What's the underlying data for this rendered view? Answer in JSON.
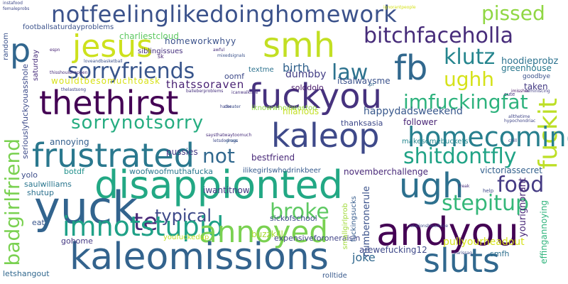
{
  "words": [
    {
      "text": "notfeelinglikedoinghomework",
      "color": "#3b528b"
    },
    {
      "text": "smh",
      "color": "#c2df23"
    },
    {
      "text": "jesus",
      "color": "#cde11d"
    },
    {
      "text": "bitchfaceholla",
      "color": "#472c7a"
    },
    {
      "text": "fb",
      "color": "#31688e"
    },
    {
      "text": "p",
      "color": "#31668e"
    },
    {
      "text": "sorryfriends",
      "color": "#39568c"
    },
    {
      "text": "law",
      "color": "#2c728e"
    },
    {
      "text": "klutz",
      "color": "#25858e"
    },
    {
      "text": "ughh",
      "color": "#d5e21a"
    },
    {
      "text": "pissed",
      "color": "#90d743"
    },
    {
      "text": "thethirst",
      "color": "#440154"
    },
    {
      "text": "fuckyou",
      "color": "#46327e"
    },
    {
      "text": "imfuckingfat",
      "color": "#2db27d"
    },
    {
      "text": "fuckit",
      "color": "#bddf26"
    },
    {
      "text": "badgirlfriend",
      "color": "#7ad151"
    },
    {
      "text": "sorrynotsorry",
      "color": "#26ad81"
    },
    {
      "text": "kaleop",
      "color": "#3e4989"
    },
    {
      "text": "homecoming",
      "color": "#277f8e"
    },
    {
      "text": "frustrated",
      "color": "#2a788e"
    },
    {
      "text": "shitdontfly",
      "color": "#20a386"
    },
    {
      "text": "not",
      "color": "#31688e"
    },
    {
      "text": "disappionted",
      "color": "#22a884"
    },
    {
      "text": "ugh",
      "color": "#2d708e"
    },
    {
      "text": "food",
      "color": "#443a83"
    },
    {
      "text": "yuck",
      "color": "#32648e"
    },
    {
      "text": "te",
      "color": "#482878"
    },
    {
      "text": "typical",
      "color": "#3e4a89"
    },
    {
      "text": "broke",
      "color": "#5ec962"
    },
    {
      "text": "stepitup",
      "color": "#35b779"
    },
    {
      "text": "imnotstupid",
      "color": "#1fa187"
    },
    {
      "text": "annoyed",
      "color": "#7ad151"
    },
    {
      "text": "andyou",
      "color": "#440154"
    },
    {
      "text": "kaleomissions",
      "color": "#33638d"
    },
    {
      "text": "sluts",
      "color": "#31688e"
    },
    {
      "text": "thatssoraven",
      "color": "#482173"
    },
    {
      "text": "birth",
      "color": "#33638d"
    },
    {
      "text": "dumbby",
      "color": "#433e85"
    },
    {
      "text": "homeworkwhyy",
      "color": "#3b528b"
    },
    {
      "text": "charliestcloud",
      "color": "#5ec962"
    },
    {
      "text": "siblingissues",
      "color": "#46307e"
    },
    {
      "text": "footballsaturdayproblems",
      "color": "#3b528b"
    },
    {
      "text": "hoodieprobz",
      "color": "#2c728e"
    },
    {
      "text": "greenhouse",
      "color": "#2a788e"
    },
    {
      "text": "taken",
      "color": "#443a83"
    },
    {
      "text": "wouldtbesomuchtoask",
      "color": "#d8e219"
    },
    {
      "text": "itsalwaysme",
      "color": "#3b528b"
    },
    {
      "text": "solodolo",
      "color": "#48186a"
    },
    {
      "text": "oomf",
      "color": "#3e4a89"
    },
    {
      "text": "textme",
      "color": "#2c728e"
    },
    {
      "text": "iknowwhoitwastoo",
      "color": "#8fd744"
    },
    {
      "text": "hilarious",
      "color": "#c2df23"
    },
    {
      "text": "happydadsweekend",
      "color": "#38588c"
    },
    {
      "text": "follower",
      "color": "#482475"
    },
    {
      "text": "thanksasia",
      "color": "#3e4989"
    },
    {
      "text": "makesomebuckets",
      "color": "#24868e"
    },
    {
      "text": "annoying",
      "color": "#35608d"
    },
    {
      "text": "pussies",
      "color": "#443983"
    },
    {
      "text": "bestfriend",
      "color": "#482878"
    },
    {
      "text": "woofwoofmuthafucka",
      "color": "#2a788e"
    },
    {
      "text": "ilikegirlswhodrinkbeer",
      "color": "#375b8d"
    },
    {
      "text": "novemberchallenge",
      "color": "#482878"
    },
    {
      "text": "victoriassecret",
      "color": "#34618d"
    },
    {
      "text": "botdf",
      "color": "#21918c"
    },
    {
      "text": "yolo",
      "color": "#3d4e8a"
    },
    {
      "text": "saulwilliams",
      "color": "#2a768e"
    },
    {
      "text": "shutup",
      "color": "#2c718e"
    },
    {
      "text": "seriouslyfuckyouasshole",
      "color": "#3e4c8a"
    },
    {
      "text": "saturday",
      "color": "#472d7b"
    },
    {
      "text": "iwantitnow",
      "color": "#453882"
    },
    {
      "text": "sickofschool",
      "color": "#3e4a89"
    },
    {
      "text": "eat",
      "color": "#39568c"
    },
    {
      "text": "gohome",
      "color": "#443983"
    },
    {
      "text": "youfuckedup",
      "color": "#c0df25"
    },
    {
      "text": "buzzkill",
      "color": "#a8db34"
    },
    {
      "text": "expensiveforoneraisin",
      "color": "#414487"
    },
    {
      "text": "arewefucking12",
      "color": "#3e4989"
    },
    {
      "text": "pullyourheadout",
      "color": "#d5e21a"
    },
    {
      "text": "joke",
      "color": "#31688e"
    },
    {
      "text": "smfh",
      "color": "#2e6f8e"
    },
    {
      "text": "letshangout",
      "color": "#31688e"
    },
    {
      "text": "rolltide",
      "color": "#38598c"
    },
    {
      "text": "numberonerule",
      "color": "#3b528b"
    },
    {
      "text": "smallgirlprob",
      "color": "#a0da39"
    },
    {
      "text": "fuckingsucks",
      "color": "#365c8d"
    },
    {
      "text": "yourignorant",
      "color": "#482878"
    },
    {
      "text": "effingannoying",
      "color": "#2fb47c"
    },
    {
      "text": "random",
      "color": "#3b528b"
    },
    {
      "text": "goodbye",
      "color": "#3b528b"
    },
    {
      "text": "help",
      "color": "#3e4989"
    },
    {
      "text": "cute",
      "color": "#46337f"
    },
    {
      "text": "annoyed",
      "color": "#7ad151"
    },
    {
      "text": "imissher",
      "color": "#481668"
    },
    {
      "text": "cheater",
      "color": "#3d4e8a"
    },
    {
      "text": "gross",
      "color": "#31688e"
    },
    {
      "text": "pr",
      "color": "#31688e"
    },
    {
      "text": "sk",
      "color": "#482475"
    },
    {
      "text": "espn",
      "color": "#482475"
    },
    {
      "text": "loveandbasketball",
      "color": "#3b528b"
    },
    {
      "text": "awful",
      "color": "#472f7d"
    },
    {
      "text": "mixedsignals",
      "color": "#3b528b"
    },
    {
      "text": "thisshouldhappen",
      "color": "#472d7b"
    },
    {
      "text": "thelastsong",
      "color": "#404688"
    },
    {
      "text": "balleberproblems",
      "color": "#46307e"
    },
    {
      "text": "icanwalkfine",
      "color": "#46307e"
    },
    {
      "text": "hater",
      "color": "#404688"
    },
    {
      "text": "reminiscing",
      "color": "#433e85"
    },
    {
      "text": "allthetime",
      "color": "#404688"
    },
    {
      "text": "hypochondriac",
      "color": "#404688"
    },
    {
      "text": "chill",
      "color": "#404688"
    },
    {
      "text": "saysthatwaytoomuch",
      "color": "#472d7b"
    },
    {
      "text": "letsdodrugs",
      "color": "#3e4989"
    },
    {
      "text": "relationshipadvice",
      "color": "#3e4989"
    },
    {
      "text": "karissag",
      "color": "#3e4989"
    },
    {
      "text": "freak",
      "color": "#472d7b"
    },
    {
      "text": "ignorantpeople",
      "color": "#d5e21a"
    },
    {
      "text": "instafood",
      "color": "#3e4989"
    },
    {
      "text": "femaleprobs",
      "color": "#3e4989"
    },
    {
      "text": "sm",
      "color": "#3e4989"
    },
    {
      "text": "rolltide2",
      "color": "#3e4989"
    }
  ]
}
